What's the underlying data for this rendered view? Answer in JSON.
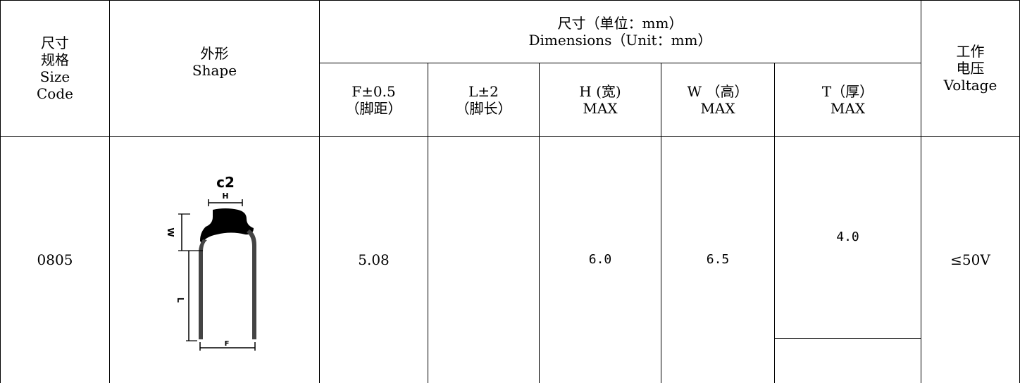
{
  "header": {
    "size_code": [
      "尺寸",
      "规格",
      "Size",
      "Code"
    ],
    "shape": [
      "外形",
      "Shape"
    ],
    "dimensions": [
      "尺寸（单位：mm）",
      "Dimensions（Unit：mm）"
    ],
    "voltage": [
      "工作",
      "电压",
      "Voltage"
    ],
    "f": [
      "F±0.5",
      "（脚距）"
    ],
    "l": [
      "L±2",
      "（脚长）"
    ],
    "h": [
      "H (宽)",
      "MAX"
    ],
    "w": [
      "W （高）",
      "MAX"
    ],
    "t": [
      "T（厚）",
      "MAX"
    ]
  },
  "row": {
    "size_code": "0805",
    "shape_label_top": "c2",
    "shape_label_h": "H",
    "shape_label_w": "W",
    "shape_label_l": "L",
    "shape_label_f": "F",
    "f": "5.08",
    "l": "",
    "h": "6.0",
    "w": "6.5",
    "t": "4.0",
    "voltage": "≤50V"
  }
}
